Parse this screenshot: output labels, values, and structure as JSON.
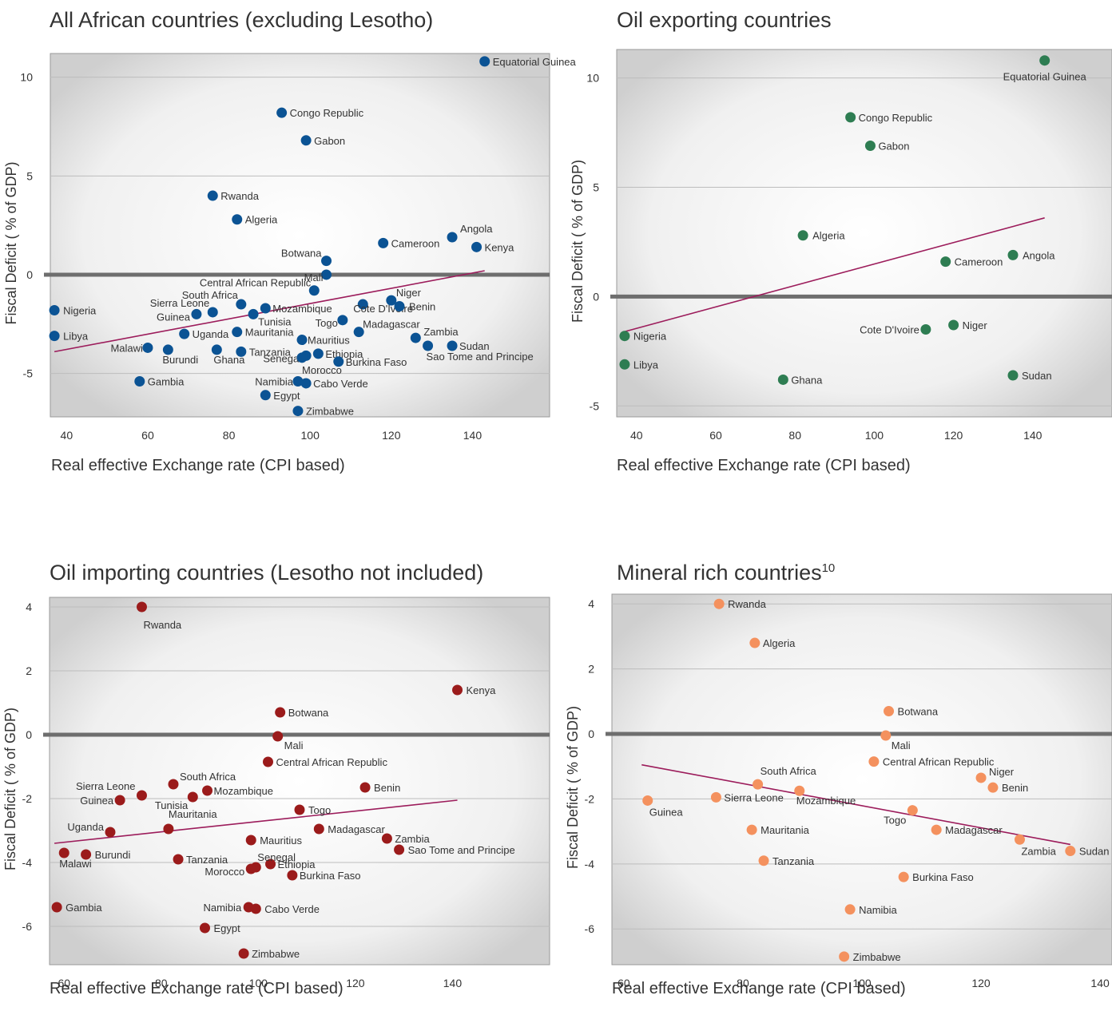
{
  "chart_data": [
    {
      "type": "scatter",
      "title": "All African countries (excluding Lesotho)",
      "title_sup": "",
      "xlabel": "Real effective Exchange rate (CPI based)",
      "ylabel": "Fiscal Deficit ( % of GDP)",
      "xlim": [
        36,
        159
      ],
      "ylim": [
        -7.2,
        11.2
      ],
      "xticks": [
        "40",
        "60",
        "80",
        "100",
        "120",
        "140"
      ],
      "yticks": [
        "10",
        "5",
        "0",
        "-5"
      ],
      "grid": true,
      "legend": "none",
      "color": "#0B5394",
      "trendline": {
        "x": [
          37,
          143
        ],
        "y": [
          -3.9,
          0.2
        ]
      },
      "points": [
        {
          "name": "Equatorial Guinea",
          "x": 143,
          "y": 10.8
        },
        {
          "name": "Congo Republic",
          "x": 93,
          "y": 8.2
        },
        {
          "name": "Gabon",
          "x": 99,
          "y": 6.8
        },
        {
          "name": "Rwanda",
          "x": 76,
          "y": 4.0
        },
        {
          "name": "Algeria",
          "x": 82,
          "y": 2.8
        },
        {
          "name": "Angola",
          "x": 135,
          "y": 1.9
        },
        {
          "name": "Cameroon",
          "x": 118,
          "y": 1.6
        },
        {
          "name": "Kenya",
          "x": 141,
          "y": 1.4
        },
        {
          "name": "Botwana",
          "x": 104,
          "y": 0.7
        },
        {
          "name": "Mali",
          "x": 104,
          "y": 0.0
        },
        {
          "name": "Central African Republic",
          "x": 101,
          "y": -0.8
        },
        {
          "name": "Nigeria",
          "x": 37,
          "y": -1.8
        },
        {
          "name": "South Africa",
          "x": 83,
          "y": -1.5
        },
        {
          "name": "Sierra Leone",
          "x": 76,
          "y": -1.9
        },
        {
          "name": "Guinea",
          "x": 72,
          "y": -2.0
        },
        {
          "name": "Mozambique",
          "x": 89,
          "y": -1.7
        },
        {
          "name": "Tunisia",
          "x": 86,
          "y": -2.0
        },
        {
          "name": "Niger",
          "x": 120,
          "y": -1.3
        },
        {
          "name": "Cote D'Ivoire",
          "x": 113,
          "y": -1.5
        },
        {
          "name": "Benin",
          "x": 122,
          "y": -1.6
        },
        {
          "name": "Togo",
          "x": 108,
          "y": -2.3
        },
        {
          "name": "Libya",
          "x": 37,
          "y": -3.1
        },
        {
          "name": "Uganda",
          "x": 69,
          "y": -3.0
        },
        {
          "name": "Mauritania",
          "x": 82,
          "y": -2.9
        },
        {
          "name": "Madagascar",
          "x": 112,
          "y": -2.9
        },
        {
          "name": "Mauritius",
          "x": 98,
          "y": -3.3
        },
        {
          "name": "Zambia",
          "x": 126,
          "y": -3.2
        },
        {
          "name": "Sudan",
          "x": 135,
          "y": -3.6
        },
        {
          "name": "Sao Tome and Principe",
          "x": 129,
          "y": -3.6
        },
        {
          "name": "Malawi",
          "x": 60,
          "y": -3.7
        },
        {
          "name": "Burundi",
          "x": 65,
          "y": -3.8
        },
        {
          "name": "Ghana",
          "x": 77,
          "y": -3.8
        },
        {
          "name": "Tanzania",
          "x": 83,
          "y": -3.9
        },
        {
          "name": "Ethiopia",
          "x": 102,
          "y": -4.0
        },
        {
          "name": "Senegal",
          "x": 99,
          "y": -4.1
        },
        {
          "name": "Morocco",
          "x": 98,
          "y": -4.2
        },
        {
          "name": "Burkina Faso",
          "x": 107,
          "y": -4.4
        },
        {
          "name": "Gambia",
          "x": 58,
          "y": -5.4
        },
        {
          "name": "Namibia",
          "x": 97,
          "y": -5.4
        },
        {
          "name": "Cabo Verde",
          "x": 99,
          "y": -5.5
        },
        {
          "name": "Egypt",
          "x": 89,
          "y": -6.1
        },
        {
          "name": "Zimbabwe",
          "x": 97,
          "y": -6.9
        }
      ]
    },
    {
      "type": "scatter",
      "title": "Oil exporting countries",
      "title_sup": "",
      "xlabel": "Real effective Exchange rate (CPI based)",
      "ylabel": "Fiscal Deficit ( % of GDP)",
      "xlim": [
        35,
        160
      ],
      "ylim": [
        -5.5,
        11.3
      ],
      "xticks": [
        "40",
        "60",
        "80",
        "100",
        "120",
        "140"
      ],
      "yticks": [
        "10",
        "5",
        "0",
        "-5"
      ],
      "grid": true,
      "legend": "none",
      "color": "#2E7D52",
      "trendline": {
        "x": [
          37,
          143
        ],
        "y": [
          -1.6,
          3.6
        ]
      },
      "points": [
        {
          "name": "Equatorial Guinea",
          "x": 143,
          "y": 10.8
        },
        {
          "name": "Congo Republic",
          "x": 94,
          "y": 8.2
        },
        {
          "name": "Gabon",
          "x": 99,
          "y": 6.9
        },
        {
          "name": "Algeria",
          "x": 82,
          "y": 2.8
        },
        {
          "name": "Angola",
          "x": 135,
          "y": 1.9
        },
        {
          "name": "Cameroon",
          "x": 118,
          "y": 1.6
        },
        {
          "name": "Nigeria",
          "x": 37,
          "y": -1.8
        },
        {
          "name": "Cote D'Ivoire",
          "x": 113,
          "y": -1.5
        },
        {
          "name": "Niger",
          "x": 120,
          "y": -1.3
        },
        {
          "name": "Libya",
          "x": 37,
          "y": -3.1
        },
        {
          "name": "Sudan",
          "x": 135,
          "y": -3.6
        },
        {
          "name": "Ghana",
          "x": 77,
          "y": -3.8
        }
      ]
    },
    {
      "type": "scatter",
      "title": "Oil importing countries (Lesotho not included)",
      "title_sup": "",
      "xlabel": "Real effective Exchange rate (CPI based)",
      "ylabel": "Fiscal Deficit ( % of GDP)",
      "xlim": [
        57,
        160
      ],
      "ylim": [
        -7.2,
        4.3
      ],
      "xticks": [
        "60",
        "80",
        "100",
        "120",
        "140"
      ],
      "yticks": [
        "4",
        "2",
        "0",
        "-2",
        "-4",
        "-6"
      ],
      "grid": true,
      "legend": "none",
      "color": "#9B1B1B",
      "trendline": {
        "x": [
          58,
          141
        ],
        "y": [
          -3.4,
          -2.05
        ]
      },
      "points": [
        {
          "name": "Rwanda",
          "x": 76,
          "y": 4.0
        },
        {
          "name": "Kenya",
          "x": 141,
          "y": 1.4
        },
        {
          "name": "Botwana",
          "x": 104.5,
          "y": 0.7
        },
        {
          "name": "Mali",
          "x": 104,
          "y": -0.05
        },
        {
          "name": "Central African Republic",
          "x": 102,
          "y": -0.85
        },
        {
          "name": "Sierra Leone",
          "x": 76,
          "y": -1.9
        },
        {
          "name": "South Africa",
          "x": 82.5,
          "y": -1.55
        },
        {
          "name": "Guinea",
          "x": 71.5,
          "y": -2.05
        },
        {
          "name": "Tunisia",
          "x": 86.5,
          "y": -1.95
        },
        {
          "name": "Mozambique",
          "x": 89.5,
          "y": -1.75
        },
        {
          "name": "Benin",
          "x": 122,
          "y": -1.65
        },
        {
          "name": "Togo",
          "x": 108.5,
          "y": -2.35
        },
        {
          "name": "Uganda",
          "x": 69.5,
          "y": -3.05
        },
        {
          "name": "Mauritania",
          "x": 81.5,
          "y": -2.95
        },
        {
          "name": "Madagascar",
          "x": 112.5,
          "y": -2.95
        },
        {
          "name": "Mauritius",
          "x": 98.5,
          "y": -3.3
        },
        {
          "name": "Zambia",
          "x": 126.5,
          "y": -3.25
        },
        {
          "name": "Sao Tome and Principe",
          "x": 129,
          "y": -3.6
        },
        {
          "name": "Malawi",
          "x": 60,
          "y": -3.7
        },
        {
          "name": "Burundi",
          "x": 64.5,
          "y": -3.75
        },
        {
          "name": "Tanzania",
          "x": 83.5,
          "y": -3.9
        },
        {
          "name": "Ethiopia",
          "x": 102.5,
          "y": -4.05
        },
        {
          "name": "Senegal",
          "x": 99.5,
          "y": -4.15
        },
        {
          "name": "Morocco",
          "x": 98.5,
          "y": -4.2
        },
        {
          "name": "Burkina Faso",
          "x": 107,
          "y": -4.4
        },
        {
          "name": "Gambia",
          "x": 58.5,
          "y": -5.4
        },
        {
          "name": "Namibia",
          "x": 98,
          "y": -5.4
        },
        {
          "name": "Cabo Verde",
          "x": 99.5,
          "y": -5.45
        },
        {
          "name": "Egypt",
          "x": 89,
          "y": -6.05
        },
        {
          "name": "Zimbabwe",
          "x": 97,
          "y": -6.85
        }
      ]
    },
    {
      "type": "scatter",
      "title": "Mineral rich countries",
      "title_sup": "10",
      "xlabel": "Real effective Exchange rate (CPI based)",
      "ylabel": "Fiscal Deficit ( % of GDP)",
      "xlim": [
        58,
        142
      ],
      "ylim": [
        -7.1,
        4.3
      ],
      "xticks": [
        "60",
        "80",
        "100",
        "120",
        "140"
      ],
      "yticks": [
        "4",
        "2",
        "0",
        "-2",
        "-4",
        "-6"
      ],
      "grid": true,
      "legend": "none",
      "color": "#F4915E",
      "trendline": {
        "x": [
          63,
          135
        ],
        "y": [
          -0.95,
          -3.4
        ]
      },
      "points": [
        {
          "name": "Rwanda",
          "x": 76,
          "y": 4.0
        },
        {
          "name": "Algeria",
          "x": 82,
          "y": 2.8
        },
        {
          "name": "Botwana",
          "x": 104.5,
          "y": 0.7
        },
        {
          "name": "Mali",
          "x": 104,
          "y": -0.05
        },
        {
          "name": "Central African Republic",
          "x": 102,
          "y": -0.85
        },
        {
          "name": "South Africa",
          "x": 82.5,
          "y": -1.55
        },
        {
          "name": "Sierra Leone",
          "x": 75.5,
          "y": -1.95
        },
        {
          "name": "Guinea",
          "x": 64,
          "y": -2.05
        },
        {
          "name": "Mozambique",
          "x": 89.5,
          "y": -1.75
        },
        {
          "name": "Niger",
          "x": 120,
          "y": -1.35
        },
        {
          "name": "Benin",
          "x": 122,
          "y": -1.65
        },
        {
          "name": "Togo",
          "x": 108.5,
          "y": -2.35
        },
        {
          "name": "Mauritania",
          "x": 81.5,
          "y": -2.95
        },
        {
          "name": "Madagascar",
          "x": 112.5,
          "y": -2.95
        },
        {
          "name": "Zambia",
          "x": 126.5,
          "y": -3.25
        },
        {
          "name": "Sudan",
          "x": 135,
          "y": -3.6
        },
        {
          "name": "Tanzania",
          "x": 83.5,
          "y": -3.9
        },
        {
          "name": "Burkina Faso",
          "x": 107,
          "y": -4.4
        },
        {
          "name": "Namibia",
          "x": 98,
          "y": -5.4
        },
        {
          "name": "Zimbabwe",
          "x": 97,
          "y": -6.85
        }
      ]
    }
  ]
}
